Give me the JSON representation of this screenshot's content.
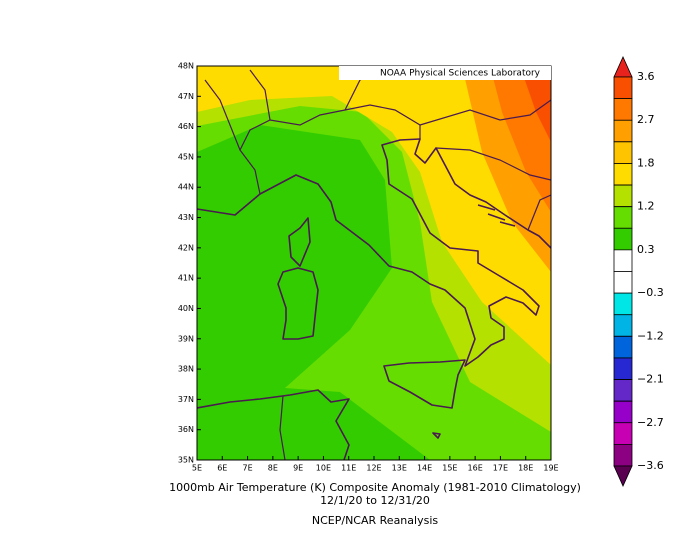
{
  "credit": "NOAA Physical Sciences Laboratory",
  "lat_labels": [
    "48N",
    "47N",
    "46N",
    "45N",
    "44N",
    "43N",
    "42N",
    "41N",
    "40N",
    "39N",
    "38N",
    "37N",
    "36N",
    "35N"
  ],
  "lon_labels": [
    "5E",
    "6E",
    "7E",
    "8E",
    "9E",
    "10E",
    "11E",
    "12E",
    "13E",
    "14E",
    "15E",
    "16E",
    "17E",
    "18E",
    "19E"
  ],
  "colorbar": {
    "labels": [
      "3.6",
      "2.7",
      "1.8",
      "1.2",
      "0.3",
      "−0.3",
      "−1.2",
      "−2.1",
      "−2.7",
      "−3.6"
    ],
    "colors": [
      "#e8221c",
      "#f85000",
      "#ff7800",
      "#ffa000",
      "#ffc400",
      "#ffdc00",
      "#b4e100",
      "#66dd00",
      "#33cc00",
      "#ffffff",
      "#ffffff",
      "#00e6e6",
      "#00b4e6",
      "#0064dc",
      "#2828d2",
      "#6428c8",
      "#9600c8",
      "#c800b4",
      "#8c0082",
      "#5a0050"
    ]
  },
  "caption": {
    "line1": "1000mb Air Temperature (K) Composite Anomaly (1981-2010 Climatology)",
    "line2": "12/1/20  to 12/31/20",
    "source": "NCEP/NCAR Reanalysis"
  }
}
